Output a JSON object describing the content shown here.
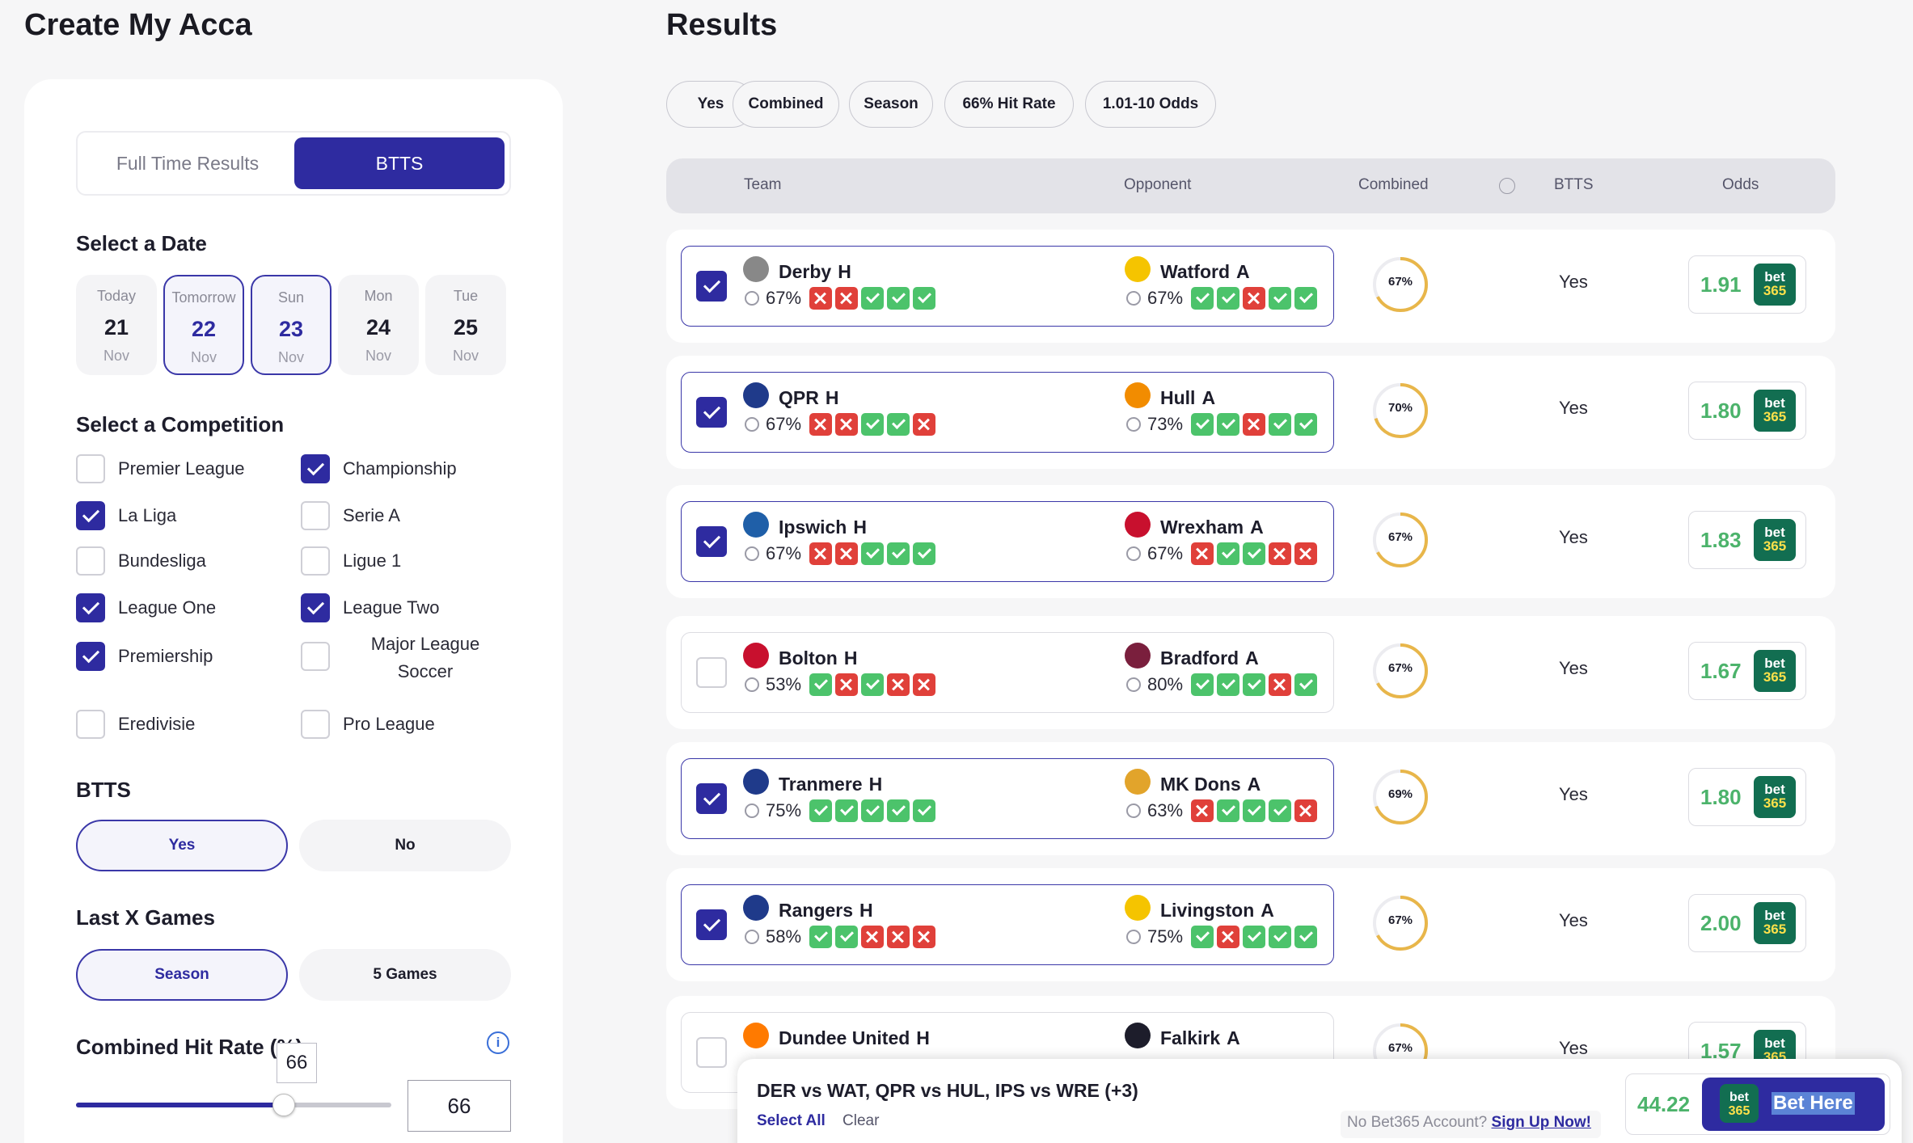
{
  "left": {
    "title": "Create My Acca",
    "market_tabs": [
      "Full Time Results",
      "BTTS"
    ],
    "date_section": "Select a Date",
    "dates": [
      {
        "day": "Today",
        "date": "21",
        "month": "Nov",
        "selected": false
      },
      {
        "day": "Tomorrow",
        "date": "22",
        "month": "Nov",
        "selected": true
      },
      {
        "day": "Sun",
        "date": "23",
        "month": "Nov",
        "selected": true
      },
      {
        "day": "Mon",
        "date": "24",
        "month": "Nov",
        "selected": false
      },
      {
        "day": "Tue",
        "date": "25",
        "month": "Nov",
        "selected": false
      }
    ],
    "competition_section": "Select a Competition",
    "competitions": [
      {
        "name": "Premier League",
        "checked": false
      },
      {
        "name": "Championship",
        "checked": true
      },
      {
        "name": "La Liga",
        "checked": true
      },
      {
        "name": "Serie A",
        "checked": false
      },
      {
        "name": "Bundesliga",
        "checked": false
      },
      {
        "name": "Ligue 1",
        "checked": false
      },
      {
        "name": "League One",
        "checked": true
      },
      {
        "name": "League Two",
        "checked": true
      },
      {
        "name": "Premiership",
        "checked": true
      },
      {
        "name": "Major League Soccer",
        "checked": false
      },
      {
        "name": "Eredivisie",
        "checked": false
      },
      {
        "name": "Pro League",
        "checked": false
      }
    ],
    "btts_section": "BTTS",
    "btts_options": [
      "Yes",
      "No"
    ],
    "lastx_section": "Last X Games",
    "lastx_options": [
      "Season",
      "5 Games"
    ],
    "hitrate_section": "Combined Hit Rate (%)",
    "hitrate_value": "66",
    "info_glyph": "i",
    "slider_value_pct": 0.66
  },
  "results": {
    "title": "Results",
    "chips": [
      "Yes",
      "Combined",
      "Season",
      "66% Hit Rate",
      "1.01-10 Odds"
    ],
    "columns": [
      "Team",
      "Opponent",
      "Combined",
      "BTTS",
      "Odds"
    ],
    "rows": [
      {
        "checked": true,
        "home": "Derby",
        "home_tag": "H",
        "home_pct": "67%",
        "home_form": [
          "no",
          "no",
          "ok",
          "ok",
          "ok"
        ],
        "away": "Watford",
        "away_tag": "A",
        "away_pct": "67%",
        "away_form": [
          "ok",
          "ok",
          "no",
          "ok",
          "ok"
        ],
        "combined": "67%",
        "btts": "Yes",
        "odds": "1.91"
      },
      {
        "checked": true,
        "home": "QPR",
        "home_tag": "H",
        "home_pct": "67%",
        "home_form": [
          "no",
          "no",
          "ok",
          "ok",
          "no"
        ],
        "away": "Hull",
        "away_tag": "A",
        "away_pct": "73%",
        "away_form": [
          "ok",
          "ok",
          "no",
          "ok",
          "ok"
        ],
        "combined": "70%",
        "btts": "Yes",
        "odds": "1.80"
      },
      {
        "checked": true,
        "home": "Ipswich",
        "home_tag": "H",
        "home_pct": "67%",
        "home_form": [
          "no",
          "no",
          "ok",
          "ok",
          "ok"
        ],
        "away": "Wrexham",
        "away_tag": "A",
        "away_pct": "67%",
        "away_form": [
          "no",
          "ok",
          "ok",
          "no",
          "no"
        ],
        "combined": "67%",
        "btts": "Yes",
        "odds": "1.83"
      },
      {
        "checked": false,
        "home": "Bolton",
        "home_tag": "H",
        "home_pct": "53%",
        "home_form": [
          "ok",
          "no",
          "ok",
          "no",
          "no"
        ],
        "away": "Bradford",
        "away_tag": "A",
        "away_pct": "80%",
        "away_form": [
          "ok",
          "ok",
          "ok",
          "no",
          "ok"
        ],
        "combined": "67%",
        "btts": "Yes",
        "odds": "1.67"
      },
      {
        "checked": true,
        "home": "Tranmere",
        "home_tag": "H",
        "home_pct": "75%",
        "home_form": [
          "ok",
          "ok",
          "ok",
          "ok",
          "ok"
        ],
        "away": "MK Dons",
        "away_tag": "A",
        "away_pct": "63%",
        "away_form": [
          "no",
          "ok",
          "ok",
          "ok",
          "no"
        ],
        "combined": "69%",
        "btts": "Yes",
        "odds": "1.80"
      },
      {
        "checked": true,
        "home": "Rangers",
        "home_tag": "H",
        "home_pct": "58%",
        "home_form": [
          "ok",
          "ok",
          "no",
          "no",
          "no"
        ],
        "away": "Livingston",
        "away_tag": "A",
        "away_pct": "75%",
        "away_form": [
          "ok",
          "no",
          "ok",
          "ok",
          "ok"
        ],
        "combined": "67%",
        "btts": "Yes",
        "odds": "2.00"
      },
      {
        "checked": false,
        "home": "Dundee United",
        "home_tag": "H",
        "home_pct": "",
        "home_form": [],
        "away": "Falkirk",
        "away_tag": "A",
        "away_pct": "",
        "away_form": [],
        "combined": "67%",
        "btts": "Yes",
        "odds": "1.57"
      }
    ]
  },
  "slip": {
    "summary": "DER vs WAT, QPR vs HUL, IPS vs WRE (+3)",
    "select_all": "Select All",
    "clear": "Clear",
    "no_account": "No Bet365 Account?",
    "sign_up": "Sign Up Now!",
    "total_odds": "44.22",
    "bet_label": "Bet Here"
  },
  "bet365_logo": {
    "top": "bet",
    "bottom": "365"
  },
  "colors": {
    "accent": "#2e2ba0",
    "win": "#4cc36b",
    "loss": "#e0403a",
    "odds_text": "#4cb36b",
    "ring": "#e8b64a",
    "bet365_green": "#126e51"
  },
  "crest_colors": [
    "#888888",
    "#1f3a8a",
    "#1f5fa8",
    "#c8102e",
    "#1f3a8a",
    "#1f3a8a",
    "#ff7a00"
  ],
  "opp_crest_colors": [
    "#f5c400",
    "#f28c00",
    "#c8102e",
    "#7a1f3d",
    "#e2a42b",
    "#f5c400",
    "#1d1d2b"
  ]
}
